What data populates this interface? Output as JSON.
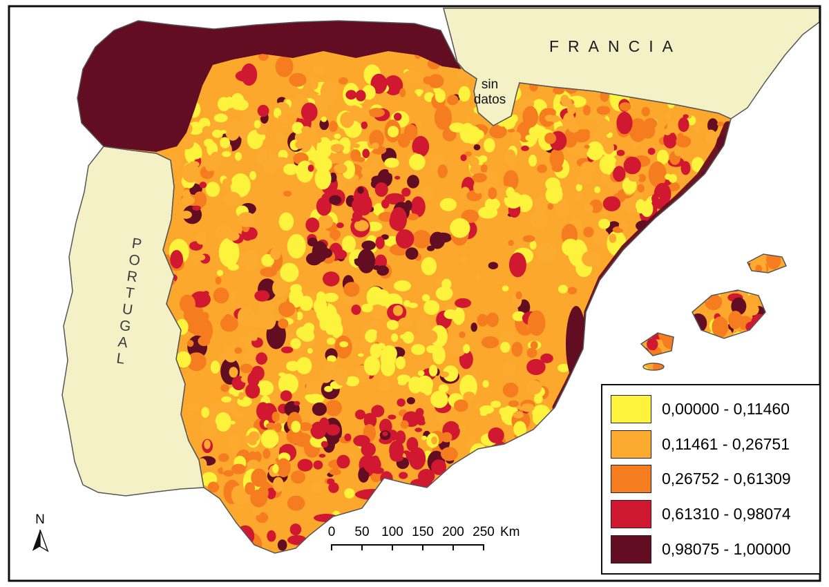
{
  "map": {
    "labels": {
      "francia": "FRANCIA",
      "portugal": "PORTUGAL",
      "no_data_line1": "sin",
      "no_data_line2": "datos",
      "north": "N"
    },
    "scalebar": {
      "ticks": [
        "0",
        "50",
        "100",
        "150",
        "200",
        "250"
      ],
      "unit": "Km"
    },
    "legend": {
      "items": [
        {
          "label": "0,00000 - 0,11460",
          "color": "#FDF23C"
        },
        {
          "label": "0,11461 - 0,26751",
          "color": "#FCAA30"
        },
        {
          "label": "0,26752 - 0,61309",
          "color": "#F57D20"
        },
        {
          "label": "0,61310 - 0,98074",
          "color": "#D01931"
        },
        {
          "label": "0,98075 - 1,00000",
          "color": "#630D23"
        }
      ]
    },
    "colors": {
      "sea": "#FFFFFF",
      "neighbor_land": "#F5F1C6",
      "base": "#FBA82C",
      "frame": "#0D0D0D"
    }
  }
}
